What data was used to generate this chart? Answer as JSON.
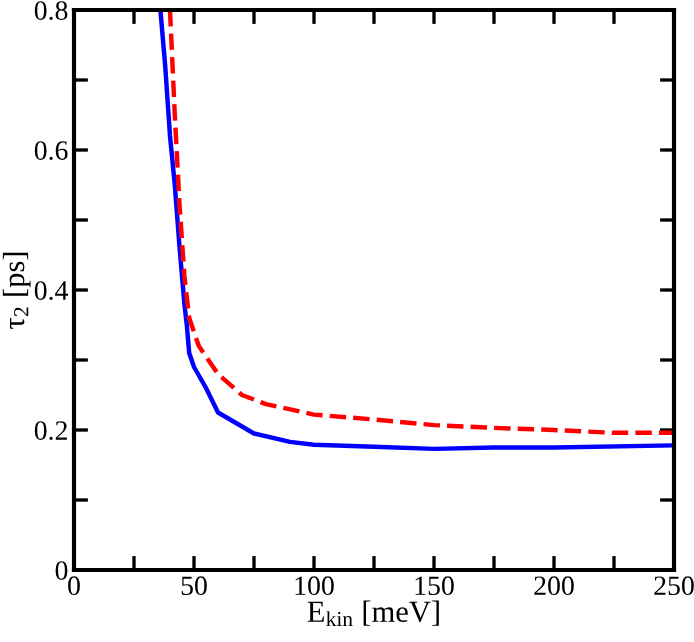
{
  "chart_data": {
    "type": "line",
    "xlabel": "E$_{kin}$ [meV]",
    "ylabel": "τ$_{2}$ [ps]",
    "xlim": [
      0,
      250
    ],
    "ylim": [
      0,
      0.8
    ],
    "xticks": [
      0,
      {
        "value": 25,
        "label": null
      },
      50,
      {
        "value": 75,
        "label": null
      },
      100,
      {
        "value": 125,
        "label": null
      },
      150,
      {
        "value": 175,
        "label": null
      },
      200,
      {
        "value": 225,
        "label": null
      },
      250
    ],
    "yticks": [
      0,
      {
        "value": 0.1,
        "label": null
      },
      0.2,
      {
        "value": 0.3,
        "label": null
      },
      0.4,
      {
        "value": 0.5,
        "label": null
      },
      0.6,
      {
        "value": 0.7,
        "label": null
      },
      0.8
    ],
    "grid": false,
    "legend": false,
    "series": [
      {
        "color": "#0000ff",
        "line_style": "solid",
        "x": [
          36,
          38,
          40,
          42,
          44,
          46,
          47,
          48,
          50,
          55,
          60,
          70,
          75,
          90,
          100,
          125,
          150,
          175,
          200,
          250
        ],
        "values": [
          0.8,
          0.72,
          0.62,
          0.55,
          0.46,
          0.38,
          0.35,
          0.31,
          0.29,
          0.26,
          0.225,
          0.205,
          0.195,
          0.183,
          0.179,
          0.176,
          0.173,
          0.175,
          0.175,
          0.178
        ]
      },
      {
        "color": "#ff0000",
        "line_style": "dashed",
        "x": [
          40,
          42,
          44,
          46,
          48,
          52,
          60,
          70,
          80,
          100,
          125,
          150,
          175,
          200,
          225,
          250
        ],
        "values": [
          0.8,
          0.65,
          0.52,
          0.42,
          0.36,
          0.32,
          0.28,
          0.25,
          0.237,
          0.222,
          0.215,
          0.207,
          0.203,
          0.2,
          0.196,
          0.196
        ]
      }
    ]
  }
}
